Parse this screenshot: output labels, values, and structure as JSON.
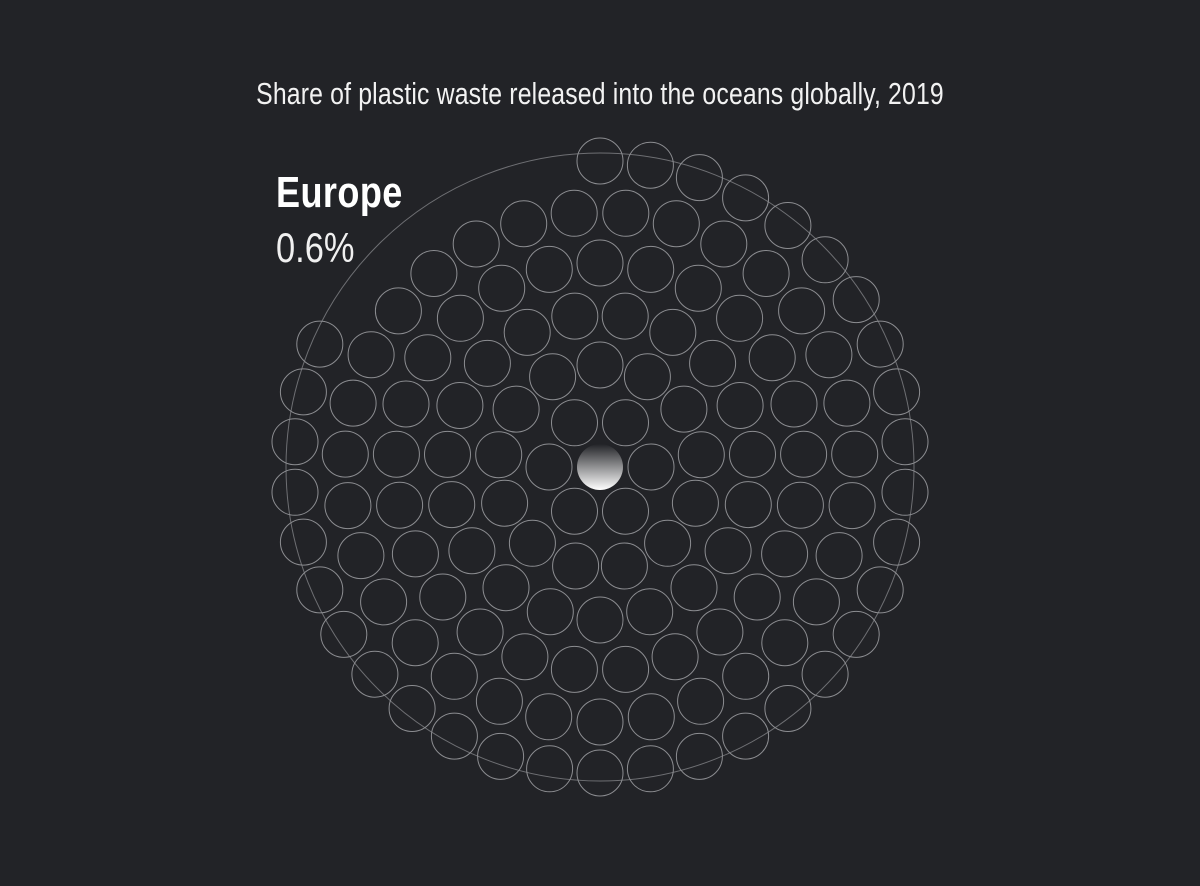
{
  "chart_data": {
    "type": "proportional-dot-grid",
    "title": "Share of plastic waste released into the oceans globally, 2019",
    "region": "Europe",
    "share_label": "0.6%",
    "share_percent": 0.6,
    "total_units": 127,
    "highlighted_units": 1
  },
  "colors": {
    "background": "#222327",
    "circle_stroke": "#8c8d91",
    "outer_ring": "#6e6f73",
    "highlight_fill": "#ffffff"
  }
}
